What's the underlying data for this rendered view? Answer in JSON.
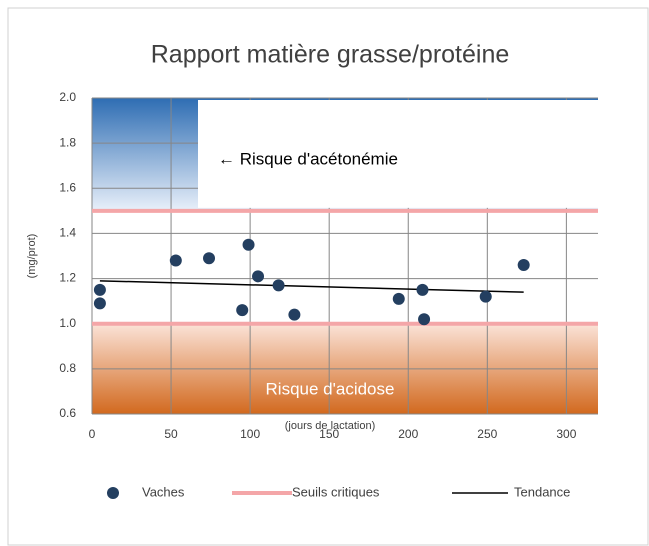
{
  "chart_data": {
    "type": "scatter",
    "title": "Rapport matière grasse/protéine",
    "x_label": "(jours de lactation)",
    "y_label": "(mg/prot)",
    "xlim": [
      0,
      320
    ],
    "xticks": [
      0,
      50,
      100,
      150,
      200,
      250,
      300
    ],
    "ylim": [
      0.6,
      2.0
    ],
    "yticks": [
      {
        "value": 0.6,
        "label": "0.6"
      },
      {
        "value": 0.8,
        "label": "0.8"
      },
      {
        "value": 1.0,
        "label": "1.0"
      },
      {
        "value": 1.2,
        "label": "1.2"
      },
      {
        "value": 1.4,
        "label": "1.4"
      },
      {
        "value": 1.6,
        "label": "1.6"
      },
      {
        "value": 1.8,
        "label": "1.8"
      },
      {
        "value": 2.0,
        "label": "2.0"
      }
    ],
    "grid": true,
    "series": [
      {
        "name": "Vaches",
        "color": "#243f60",
        "x": [
          5,
          5,
          53,
          74,
          95,
          99,
          105,
          118,
          128,
          194,
          209,
          210,
          249,
          273
        ],
        "values": [
          1.15,
          1.09,
          1.28,
          1.29,
          1.06,
          1.35,
          1.21,
          1.17,
          1.04,
          1.11,
          1.15,
          1.02,
          1.12,
          1.26
        ]
      }
    ],
    "thresholds": {
      "name": "Seuils critiques",
      "color": "#f4a6a8",
      "values": [
        1.5,
        1.0
      ]
    },
    "trend": {
      "name": "Tendance",
      "color": "#000000",
      "x": [
        5,
        273
      ],
      "values": [
        1.19,
        1.14
      ]
    },
    "annotations": [
      "← Risque d'acétonémie",
      "Risque d'acidose"
    ]
  }
}
